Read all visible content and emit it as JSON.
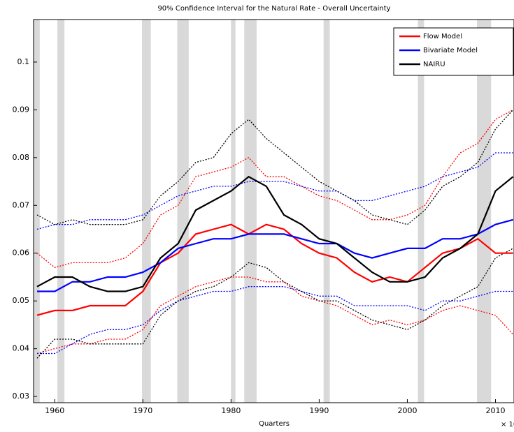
{
  "chart_data": {
    "type": "line",
    "title": "90% Confidence Interval for the Natural Rate - Overall Uncertainty",
    "x_label": "Quarters",
    "x_axis_note": "× 10",
    "x": [
      1958,
      1960,
      1962,
      1964,
      1966,
      1968,
      1970,
      1972,
      1974,
      1976,
      1978,
      1980,
      1982,
      1984,
      1986,
      1988,
      1990,
      1992,
      1994,
      1996,
      1998,
      2000,
      2002,
      2004,
      2006,
      2008,
      2010,
      2012
    ],
    "series": [
      {
        "name": "Flow Model",
        "color": "#ff0000",
        "values": [
          0.047,
          0.048,
          0.048,
          0.049,
          0.049,
          0.049,
          0.052,
          0.058,
          0.06,
          0.064,
          0.065,
          0.066,
          0.064,
          0.066,
          0.065,
          0.062,
          0.06,
          0.059,
          0.056,
          0.054,
          0.055,
          0.054,
          0.057,
          0.06,
          0.061,
          0.063,
          0.06,
          0.06
        ],
        "upper": [
          0.06,
          0.057,
          0.058,
          0.058,
          0.058,
          0.059,
          0.062,
          0.068,
          0.07,
          0.076,
          0.077,
          0.078,
          0.08,
          0.076,
          0.076,
          0.074,
          0.072,
          0.071,
          0.069,
          0.067,
          0.067,
          0.068,
          0.07,
          0.076,
          0.081,
          0.083,
          0.088,
          0.09
        ],
        "lower": [
          0.039,
          0.04,
          0.041,
          0.041,
          0.042,
          0.042,
          0.044,
          0.049,
          0.051,
          0.053,
          0.054,
          0.055,
          0.055,
          0.054,
          0.054,
          0.051,
          0.05,
          0.049,
          0.047,
          0.045,
          0.046,
          0.045,
          0.046,
          0.048,
          0.049,
          0.048,
          0.047,
          0.043
        ]
      },
      {
        "name": "Bivariate Model",
        "color": "#0000ff",
        "values": [
          0.052,
          0.052,
          0.054,
          0.054,
          0.055,
          0.055,
          0.056,
          0.058,
          0.061,
          0.062,
          0.063,
          0.063,
          0.064,
          0.064,
          0.064,
          0.063,
          0.062,
          0.062,
          0.06,
          0.059,
          0.06,
          0.061,
          0.061,
          0.063,
          0.063,
          0.064,
          0.066,
          0.067
        ],
        "upper": [
          0.065,
          0.066,
          0.066,
          0.067,
          0.067,
          0.067,
          0.068,
          0.07,
          0.072,
          0.073,
          0.074,
          0.074,
          0.075,
          0.075,
          0.075,
          0.074,
          0.073,
          0.073,
          0.071,
          0.071,
          0.072,
          0.073,
          0.074,
          0.076,
          0.077,
          0.078,
          0.081,
          0.081
        ],
        "lower": [
          0.039,
          0.039,
          0.041,
          0.043,
          0.044,
          0.044,
          0.045,
          0.048,
          0.05,
          0.051,
          0.052,
          0.052,
          0.053,
          0.053,
          0.053,
          0.052,
          0.051,
          0.051,
          0.049,
          0.049,
          0.049,
          0.049,
          0.048,
          0.05,
          0.05,
          0.051,
          0.052,
          0.052
        ]
      },
      {
        "name": "NAIRU",
        "color": "#000000",
        "values": [
          0.053,
          0.055,
          0.055,
          0.053,
          0.052,
          0.052,
          0.053,
          0.059,
          0.062,
          0.069,
          0.071,
          0.073,
          0.076,
          0.074,
          0.068,
          0.066,
          0.063,
          0.062,
          0.059,
          0.056,
          0.054,
          0.054,
          0.055,
          0.059,
          0.061,
          0.064,
          0.073,
          0.076
        ],
        "upper": [
          0.068,
          0.066,
          0.067,
          0.066,
          0.066,
          0.066,
          0.067,
          0.072,
          0.075,
          0.079,
          0.08,
          0.085,
          0.088,
          0.084,
          0.081,
          0.078,
          0.075,
          0.073,
          0.071,
          0.068,
          0.067,
          0.066,
          0.069,
          0.074,
          0.076,
          0.079,
          0.086,
          0.09
        ],
        "lower": [
          0.038,
          0.042,
          0.042,
          0.041,
          0.041,
          0.041,
          0.041,
          0.047,
          0.05,
          0.052,
          0.053,
          0.055,
          0.058,
          0.057,
          0.054,
          0.052,
          0.05,
          0.05,
          0.048,
          0.046,
          0.045,
          0.044,
          0.046,
          0.049,
          0.051,
          0.053,
          0.059,
          0.061
        ]
      }
    ],
    "shaded_regions": [
      [
        1957.6,
        1958.3
      ],
      [
        1960.3,
        1961.1
      ],
      [
        1969.9,
        1970.9
      ],
      [
        1973.9,
        1975.2
      ],
      [
        1980.0,
        1980.5
      ],
      [
        1981.5,
        1982.9
      ],
      [
        1990.5,
        1991.2
      ],
      [
        2001.2,
        2001.9
      ],
      [
        2007.9,
        2009.5
      ]
    ],
    "shade_color": "#d9d9d9",
    "xlim": [
      1957.6,
      2012.1
    ],
    "ylim": [
      0.0287,
      0.1089
    ],
    "xticks": [
      1960,
      1970,
      1980,
      1990,
      2000,
      2010
    ],
    "yticks": [
      0.03,
      0.04,
      0.05,
      0.06,
      0.07,
      0.08,
      0.09,
      0.1
    ],
    "legend": "upper right"
  }
}
